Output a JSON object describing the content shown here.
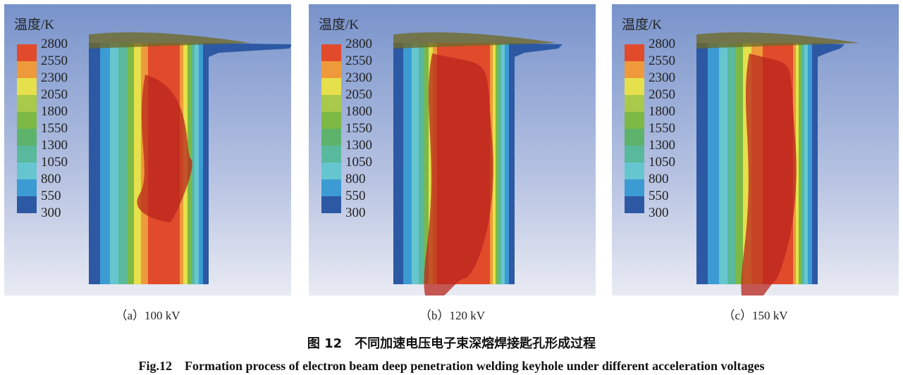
{
  "legend": {
    "title": "温度/K",
    "ticks": [
      "2800",
      "2550",
      "2300",
      "2050",
      "1800",
      "1550",
      "1300",
      "1050",
      "800",
      "550",
      "300"
    ],
    "colors": [
      "#e24a2c",
      "#ef9a3a",
      "#e6e04c",
      "#a9c94a",
      "#7cb945",
      "#5db36c",
      "#58b99c",
      "#66c6d0",
      "#3b9bd2",
      "#2c58a4"
    ]
  },
  "panels": [
    {
      "label": "（a）100 kV"
    },
    {
      "label": "（b）120 kV"
    },
    {
      "label": "（c）150 kV"
    }
  ],
  "caption": {
    "cn": "图 12　不同加速电压电子束深熔焊接匙孔形成过程",
    "en": "Fig.12　Formation process of electron beam deep penetration welding keyhole under different acceleration voltages"
  }
}
